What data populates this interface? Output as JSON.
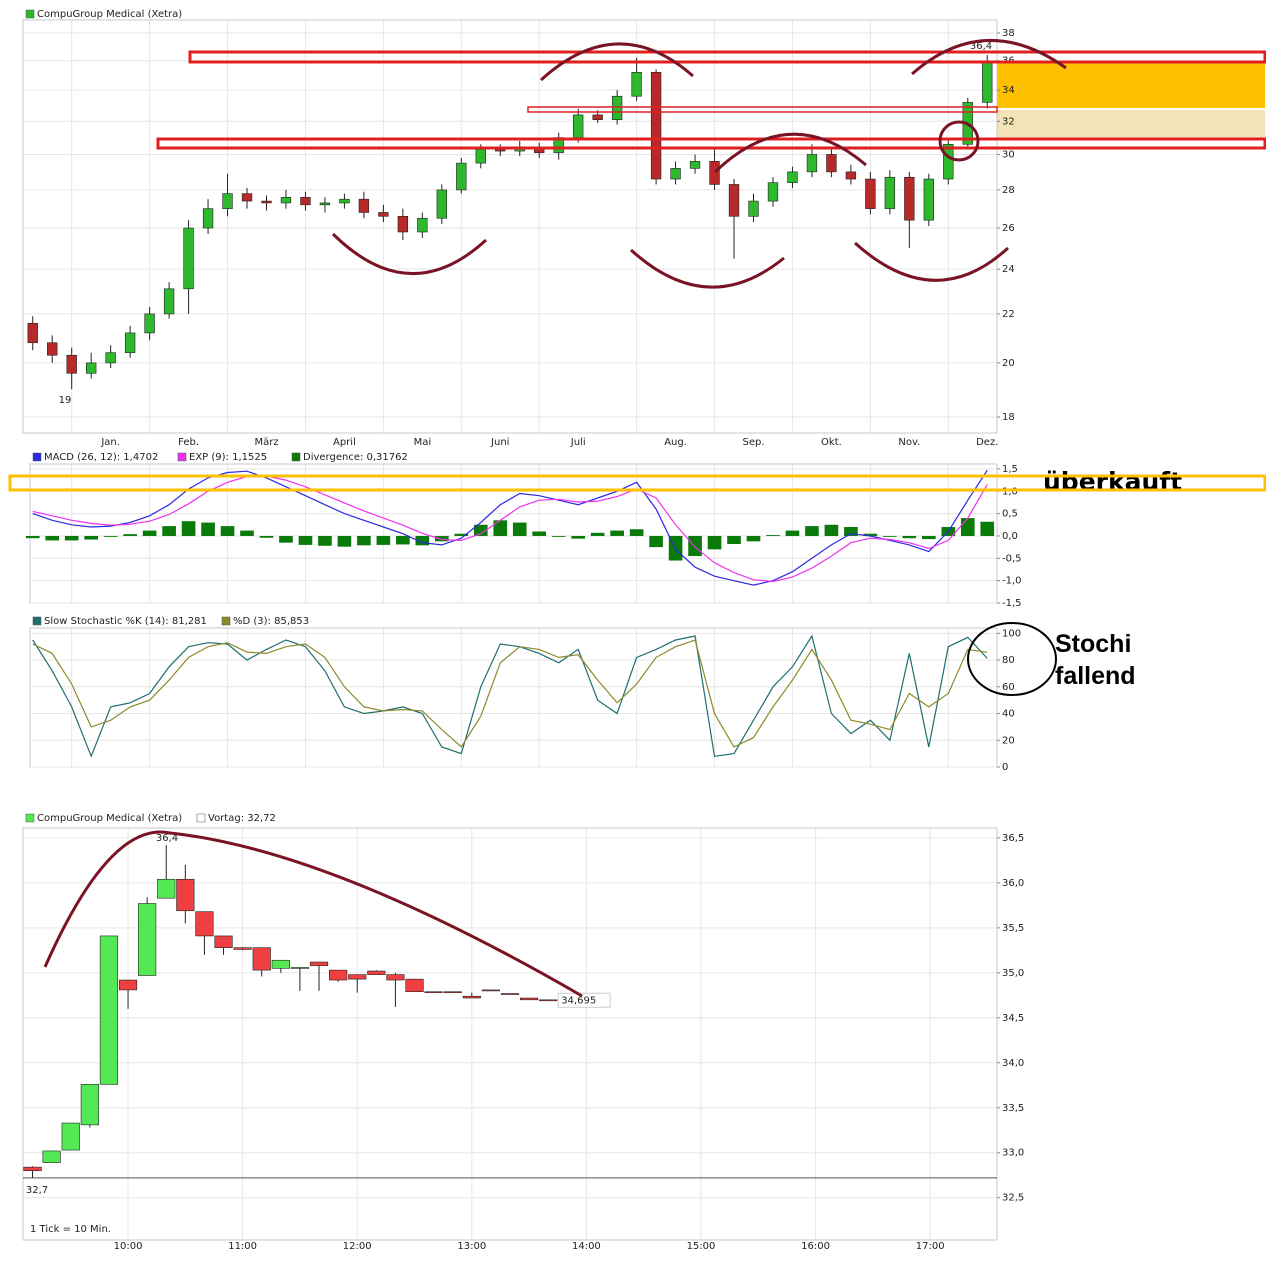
{
  "chart_data": [
    {
      "type": "candlestick",
      "name": "CompuGroup Medical (Xetra)",
      "log_scale": true,
      "grid": true,
      "up_color": "#2db82d",
      "down_color": "#b82a2a",
      "categories": [
        null,
        null,
        null,
        null,
        "Jan.",
        null,
        null,
        null,
        "Feb.",
        null,
        null,
        null,
        "März",
        null,
        null,
        null,
        "April",
        null,
        null,
        null,
        "Mai",
        null,
        null,
        null,
        "Juni",
        null,
        null,
        null,
        "Juli",
        null,
        null,
        null,
        null,
        "Aug.",
        null,
        null,
        null,
        "Sep.",
        null,
        null,
        null,
        "Okt.",
        null,
        null,
        null,
        "Nov.",
        null,
        null,
        null,
        "Dez."
      ],
      "open": [
        21.6,
        20.8,
        20.3,
        19.6,
        20.0,
        20.4,
        21.2,
        22.0,
        23.1,
        26.0,
        27.0,
        27.8,
        27.4,
        27.3,
        27.6,
        27.2,
        27.3,
        27.5,
        26.8,
        26.6,
        25.8,
        26.5,
        28.0,
        29.5,
        30.3,
        30.2,
        30.4,
        30.1,
        31.0,
        32.4,
        32.1,
        33.6,
        35.2,
        28.6,
        29.2,
        29.6,
        28.3,
        26.6,
        27.4,
        28.4,
        29.0,
        30.0,
        29.0,
        28.6,
        27.0,
        28.7,
        26.4,
        28.6,
        30.6,
        33.2
      ],
      "high": [
        21.9,
        21.1,
        20.6,
        20.4,
        20.7,
        21.5,
        22.3,
        23.4,
        26.4,
        27.5,
        28.9,
        28.1,
        27.7,
        28.0,
        27.9,
        27.6,
        27.8,
        27.9,
        27.2,
        27.0,
        26.8,
        28.3,
        29.8,
        30.6,
        30.6,
        30.8,
        30.7,
        31.3,
        32.8,
        32.7,
        34.0,
        36.2,
        35.4,
        29.6,
        30.0,
        30.3,
        28.6,
        27.8,
        28.7,
        29.3,
        30.6,
        30.3,
        29.4,
        29.0,
        29.1,
        29.0,
        28.9,
        30.9,
        33.5,
        36.4
      ],
      "low": [
        20.5,
        20.0,
        19.0,
        19.4,
        19.8,
        20.2,
        20.9,
        21.8,
        22.0,
        25.7,
        26.6,
        27.0,
        26.9,
        27.0,
        26.9,
        26.8,
        27.0,
        26.5,
        26.3,
        25.4,
        25.5,
        26.2,
        27.8,
        29.2,
        29.9,
        29.9,
        29.8,
        29.7,
        30.7,
        31.9,
        31.8,
        33.3,
        28.3,
        28.3,
        28.9,
        28.0,
        24.5,
        26.3,
        27.1,
        28.1,
        28.7,
        28.7,
        28.3,
        26.7,
        26.7,
        25.0,
        26.1,
        28.3,
        30.4,
        32.8
      ],
      "close": [
        20.8,
        20.3,
        19.6,
        20.0,
        20.4,
        21.2,
        22.0,
        23.1,
        26.0,
        27.0,
        27.8,
        27.4,
        27.3,
        27.6,
        27.2,
        27.3,
        27.5,
        26.8,
        26.6,
        25.8,
        26.5,
        28.0,
        29.5,
        30.3,
        30.2,
        30.4,
        30.1,
        31.0,
        32.4,
        32.1,
        33.6,
        35.2,
        28.6,
        29.2,
        29.6,
        28.3,
        26.6,
        27.4,
        28.4,
        29.0,
        30.0,
        29.0,
        28.6,
        27.0,
        28.7,
        26.4,
        28.6,
        30.6,
        33.2,
        35.9
      ],
      "ylim": [
        17.45,
        38.97
      ],
      "yticks": [
        18,
        20,
        22,
        24,
        26,
        28,
        30,
        32,
        34,
        36,
        38
      ],
      "annotations": [
        "19",
        "36,4"
      ]
    },
    {
      "type": "combo",
      "grid": true,
      "ylim": [
        -1.5,
        1.61
      ],
      "yticks": [
        {
          "value": -1.5,
          "label": "-1,5"
        },
        {
          "value": -1,
          "label": "-1,0"
        },
        {
          "value": -0.5,
          "label": "-0,5"
        },
        {
          "value": 0,
          "label": "0,0"
        },
        {
          "value": 0.5,
          "label": "0,5"
        },
        {
          "value": 1,
          "label": "1,0"
        },
        {
          "value": 1.5,
          "label": "1,5"
        }
      ],
      "series": [
        {
          "name": "MACD (26, 12): 1,4702",
          "kind": "line",
          "color": "#2a2ae0",
          "values": [
            0.5,
            0.35,
            0.25,
            0.2,
            0.22,
            0.3,
            0.45,
            0.7,
            1.05,
            1.3,
            1.42,
            1.45,
            1.3,
            1.1,
            0.9,
            0.7,
            0.5,
            0.35,
            0.2,
            0.05,
            -0.15,
            -0.2,
            -0.05,
            0.3,
            0.7,
            0.95,
            0.9,
            0.8,
            0.7,
            0.85,
            1.0,
            1.2,
            0.6,
            -0.3,
            -0.7,
            -0.9,
            -1.0,
            -1.1,
            -1.0,
            -0.8,
            -0.5,
            -0.2,
            0.05,
            0.0,
            -0.1,
            -0.2,
            -0.35,
            0.1,
            0.8,
            1.4702
          ]
        },
        {
          "name": "EXP (9): 1,1525",
          "kind": "line",
          "color": "#f030f0",
          "values": [
            0.55,
            0.45,
            0.35,
            0.28,
            0.24,
            0.26,
            0.33,
            0.48,
            0.72,
            1.0,
            1.2,
            1.33,
            1.34,
            1.25,
            1.1,
            0.92,
            0.74,
            0.56,
            0.4,
            0.24,
            0.06,
            -0.08,
            -0.1,
            0.05,
            0.35,
            0.65,
            0.8,
            0.82,
            0.76,
            0.78,
            0.88,
            1.05,
            0.85,
            0.25,
            -0.25,
            -0.6,
            -0.82,
            -0.98,
            -1.02,
            -0.92,
            -0.72,
            -0.45,
            -0.15,
            -0.05,
            -0.08,
            -0.15,
            -0.28,
            -0.1,
            0.4,
            1.1525
          ]
        },
        {
          "name": "Divergence: 0,31762",
          "kind": "bar",
          "color": "#0a7a0a",
          "values": [
            -0.05,
            -0.1,
            -0.1,
            -0.08,
            -0.02,
            0.04,
            0.12,
            0.22,
            0.33,
            0.3,
            0.22,
            0.12,
            -0.04,
            -0.15,
            -0.2,
            -0.22,
            -0.24,
            -0.21,
            -0.2,
            -0.19,
            -0.21,
            -0.12,
            0.05,
            0.25,
            0.35,
            0.3,
            0.1,
            -0.02,
            -0.06,
            0.07,
            0.12,
            0.15,
            -0.25,
            -0.55,
            -0.45,
            -0.3,
            -0.18,
            -0.12,
            0.02,
            0.12,
            0.22,
            0.25,
            0.2,
            0.05,
            -0.02,
            -0.05,
            -0.07,
            0.2,
            0.4,
            0.31762
          ]
        }
      ],
      "annotations": [
        "überkauft"
      ]
    },
    {
      "type": "line",
      "grid": true,
      "ylim": [
        0,
        104
      ],
      "yticks": [
        0,
        20,
        40,
        60,
        80,
        100
      ],
      "series": [
        {
          "name": "Slow Stochastic %K (14): 81,281",
          "color": "#1f6f70",
          "values": [
            95,
            72,
            45,
            8,
            45,
            48,
            55,
            75,
            90,
            93,
            92,
            80,
            88,
            95,
            90,
            72,
            45,
            40,
            42,
            45,
            40,
            15,
            10,
            60,
            92,
            90,
            85,
            78,
            88,
            50,
            40,
            82,
            88,
            95,
            98,
            8,
            10,
            35,
            60,
            75,
            98,
            40,
            25,
            35,
            20,
            85,
            15,
            90,
            97,
            81.281
          ]
        },
        {
          "name": "%D (3): 85,853",
          "color": "#8d8a2a",
          "values": [
            92,
            85,
            62,
            30,
            35,
            45,
            50,
            65,
            82,
            90,
            93,
            86,
            85,
            90,
            92,
            82,
            60,
            45,
            42,
            43,
            42,
            28,
            15,
            38,
            78,
            90,
            88,
            82,
            84,
            65,
            48,
            62,
            82,
            90,
            95,
            40,
            15,
            22,
            45,
            65,
            88,
            65,
            35,
            32,
            28,
            55,
            45,
            55,
            88,
            85.853
          ]
        }
      ],
      "annotations": [
        "Stochi fallend"
      ]
    },
    {
      "type": "candlestick",
      "name": "CompuGroup Medical (Xetra)",
      "grid": true,
      "up_color": "#55e855",
      "down_color": "#ee4040",
      "x": [
        "09:10",
        "09:20",
        "09:30",
        "09:40",
        "09:50",
        "10:00",
        "10:10",
        "10:20",
        "10:30",
        "10:40",
        "10:50",
        "11:00",
        "11:10",
        "11:20",
        "11:30",
        "11:40",
        "11:50",
        "12:00",
        "12:10",
        "12:20",
        "12:30",
        "12:40",
        "12:50",
        "13:00",
        "13:10",
        "13:20",
        "13:30",
        "13:40"
      ],
      "open": [
        32.84,
        32.89,
        33.03,
        33.31,
        33.76,
        34.92,
        34.97,
        35.83,
        36.04,
        35.68,
        35.41,
        35.28,
        35.28,
        35.05,
        35.05,
        35.12,
        35.03,
        34.98,
        35.02,
        34.98,
        34.93,
        34.79,
        34.79,
        34.74,
        34.81,
        34.77,
        34.72,
        34.7
      ],
      "high": [
        32.85,
        33.02,
        33.33,
        33.76,
        35.41,
        34.92,
        35.84,
        36.42,
        36.2,
        35.68,
        35.41,
        35.28,
        35.28,
        35.14,
        35.06,
        35.12,
        35.03,
        34.98,
        35.03,
        35.0,
        34.93,
        34.79,
        34.79,
        34.78,
        34.81,
        34.77,
        34.72,
        34.7
      ],
      "low": [
        32.72,
        32.89,
        33.03,
        33.28,
        33.76,
        34.6,
        34.97,
        35.83,
        35.55,
        35.2,
        35.2,
        35.25,
        34.96,
        35.0,
        34.8,
        34.8,
        34.9,
        34.78,
        34.98,
        34.62,
        34.79,
        34.78,
        34.78,
        34.72,
        34.8,
        34.76,
        34.7,
        34.695
      ],
      "close": [
        32.8,
        33.02,
        33.33,
        33.76,
        35.41,
        34.81,
        35.77,
        36.04,
        35.69,
        35.41,
        35.28,
        35.26,
        35.03,
        35.14,
        35.06,
        35.08,
        34.92,
        34.93,
        34.98,
        34.92,
        34.79,
        34.78,
        34.78,
        34.72,
        34.8,
        34.76,
        34.7,
        34.695
      ],
      "xlim": [
        "09:05",
        "17:35"
      ],
      "xticks": [
        "10:00",
        "11:00",
        "12:00",
        "13:00",
        "14:00",
        "15:00",
        "16:00",
        "17:00"
      ],
      "ylim": [
        32.03,
        36.61
      ],
      "yticks": [
        {
          "value": 32.5,
          "label": "32,5"
        },
        {
          "value": 33,
          "label": "33,0"
        },
        {
          "value": 33.5,
          "label": "33,5"
        },
        {
          "value": 34,
          "label": "34,0"
        },
        {
          "value": 34.5,
          "label": "34,5"
        },
        {
          "value": 35,
          "label": "35,0"
        },
        {
          "value": 35.5,
          "label": "35,5"
        },
        {
          "value": 36,
          "label": "36,0"
        },
        {
          "value": 36.5,
          "label": "36,5"
        }
      ],
      "reference_line": {
        "value": 32.72,
        "label": "Vortag: 32,72"
      },
      "last_price": {
        "value": 34.695,
        "label": "34,695"
      },
      "annotations": [
        "36,4",
        "32,7",
        "1 Tick = 10 Min."
      ]
    }
  ]
}
